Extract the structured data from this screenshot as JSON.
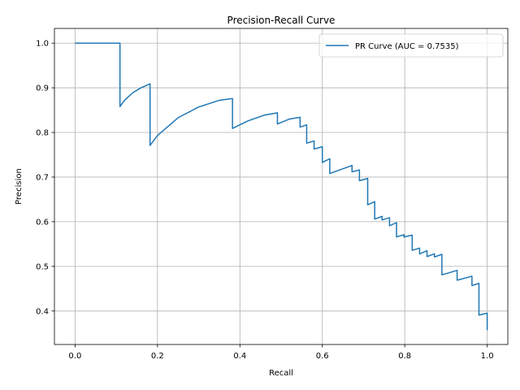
{
  "chart_data": {
    "type": "line",
    "title": "Precision-Recall Curve",
    "xlabel": "Recall",
    "ylabel": "Precision",
    "xlim": [
      -0.05,
      1.05
    ],
    "ylim": [
      0.325,
      1.033
    ],
    "xticks": [
      0.0,
      0.2,
      0.4,
      0.6,
      0.8,
      1.0
    ],
    "xtick_labels": [
      "0.0",
      "0.2",
      "0.4",
      "0.6",
      "0.8",
      "1.0"
    ],
    "yticks": [
      0.4,
      0.5,
      0.6,
      0.7,
      0.8,
      0.9,
      1.0
    ],
    "ytick_labels": [
      "0.4",
      "0.5",
      "0.6",
      "0.7",
      "0.8",
      "0.9",
      "1.0"
    ],
    "grid": true,
    "legend_position": "upper-right",
    "series": [
      {
        "name": "PR Curve (AUC = 0.7535)",
        "color": "#1f77b4",
        "x": [
          0.0,
          0.109,
          0.109,
          0.12,
          0.14,
          0.16,
          0.182,
          0.182,
          0.2,
          0.25,
          0.3,
          0.35,
          0.382,
          0.382,
          0.42,
          0.46,
          0.491,
          0.491,
          0.52,
          0.546,
          0.546,
          0.562,
          0.562,
          0.58,
          0.58,
          0.6,
          0.6,
          0.618,
          0.618,
          0.672,
          0.672,
          0.69,
          0.69,
          0.71,
          0.71,
          0.727,
          0.727,
          0.745,
          0.745,
          0.763,
          0.763,
          0.78,
          0.78,
          0.798,
          0.798,
          0.818,
          0.818,
          0.836,
          0.836,
          0.854,
          0.854,
          0.872,
          0.872,
          0.89,
          0.89,
          0.927,
          0.927,
          0.963,
          0.963,
          0.98,
          0.98,
          1.0,
          1.0
        ],
        "y": [
          1.0,
          1.0,
          0.858,
          0.872,
          0.889,
          0.9,
          0.909,
          0.771,
          0.793,
          0.833,
          0.857,
          0.872,
          0.876,
          0.809,
          0.826,
          0.839,
          0.844,
          0.819,
          0.83,
          0.834,
          0.812,
          0.817,
          0.776,
          0.781,
          0.763,
          0.768,
          0.733,
          0.741,
          0.708,
          0.726,
          0.712,
          0.716,
          0.692,
          0.697,
          0.638,
          0.645,
          0.606,
          0.612,
          0.604,
          0.609,
          0.591,
          0.598,
          0.566,
          0.571,
          0.566,
          0.57,
          0.536,
          0.541,
          0.528,
          0.535,
          0.522,
          0.528,
          0.521,
          0.527,
          0.481,
          0.491,
          0.469,
          0.478,
          0.457,
          0.462,
          0.391,
          0.395,
          0.357
        ]
      }
    ]
  }
}
